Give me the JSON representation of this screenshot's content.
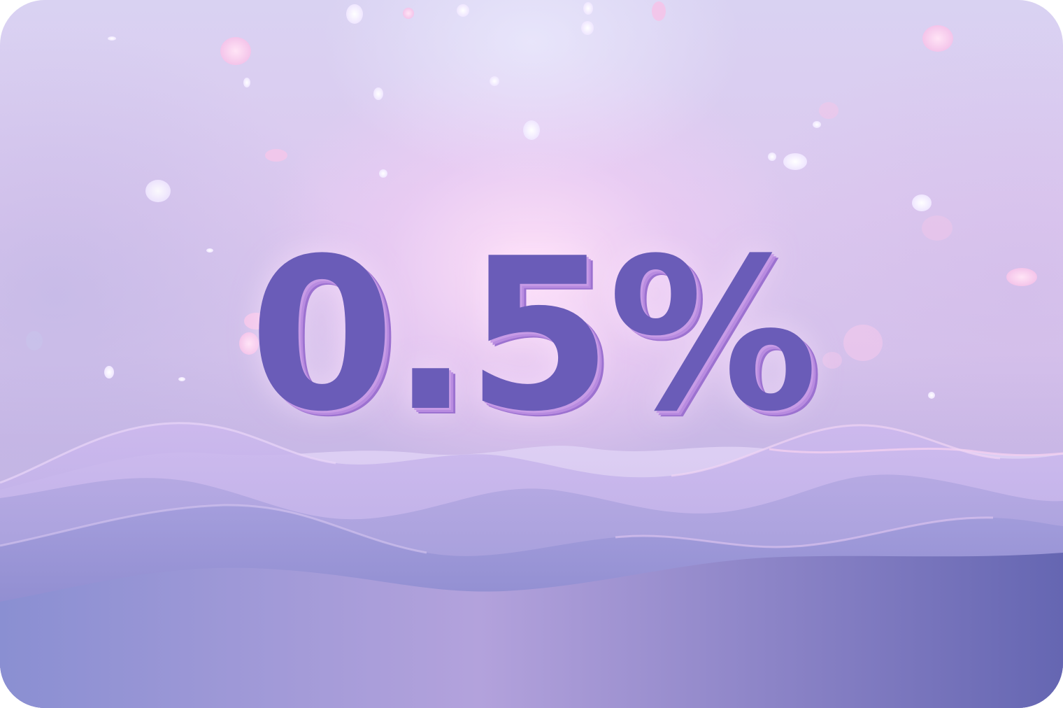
{
  "headline": {
    "text": "0.5%"
  },
  "colors": {
    "text_face": "#6a5cb8",
    "text_side": "#b88be0",
    "sky_top": "#d9d2f2",
    "glow_center": "#ffe1f8",
    "wave_dark": "#6f6cb6",
    "wave_light": "#c6b4ea",
    "particle": "#ffd6f0"
  }
}
